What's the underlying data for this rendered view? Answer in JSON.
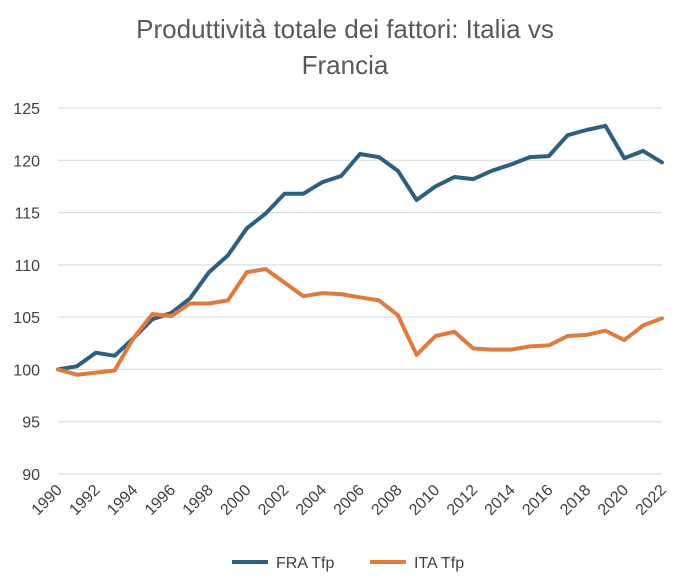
{
  "chart_data": {
    "type": "line",
    "title": "Produttività totale dei fattori: Italia vs Francia",
    "title_lines": [
      "Produttività totale dei fattori: Italia vs",
      "Francia"
    ],
    "xlabel": "",
    "ylabel": "",
    "x": [
      1990,
      1991,
      1992,
      1993,
      1994,
      1995,
      1996,
      1997,
      1998,
      1999,
      2000,
      2001,
      2002,
      2003,
      2004,
      2005,
      2006,
      2007,
      2008,
      2009,
      2010,
      2011,
      2012,
      2013,
      2014,
      2015,
      2016,
      2017,
      2018,
      2019,
      2020,
      2021,
      2022
    ],
    "x_tick_labels": [
      "1990",
      "1992",
      "1994",
      "1996",
      "1998",
      "2000",
      "2002",
      "2004",
      "2006",
      "2008",
      "2010",
      "2012",
      "2014",
      "2016",
      "2018",
      "2020",
      "2022"
    ],
    "ylim": [
      90,
      125
    ],
    "y_ticks": [
      90,
      95,
      100,
      105,
      110,
      115,
      120,
      125
    ],
    "grid": true,
    "legend_position": "bottom",
    "series": [
      {
        "name": "FRA Tfp",
        "color": "#2f5f7f",
        "values": [
          100.0,
          100.3,
          101.6,
          101.3,
          103.0,
          104.8,
          105.4,
          106.8,
          109.3,
          110.9,
          113.5,
          114.9,
          116.8,
          116.8,
          117.9,
          118.5,
          120.6,
          120.3,
          119.0,
          116.2,
          117.5,
          118.4,
          118.2,
          119.0,
          119.6,
          120.3,
          120.4,
          122.4,
          122.9,
          123.3,
          120.2,
          120.9,
          119.8
        ]
      },
      {
        "name": "ITA Tfp",
        "color": "#e07b3f",
        "values": [
          100.0,
          99.5,
          99.7,
          99.9,
          103.0,
          105.3,
          105.1,
          106.3,
          106.3,
          106.6,
          109.3,
          109.6,
          108.3,
          107.0,
          107.3,
          107.2,
          106.9,
          106.6,
          105.2,
          101.4,
          103.2,
          103.6,
          102.0,
          101.9,
          101.9,
          102.2,
          102.3,
          103.2,
          103.3,
          103.7,
          102.8,
          104.2,
          104.9
        ]
      }
    ]
  }
}
